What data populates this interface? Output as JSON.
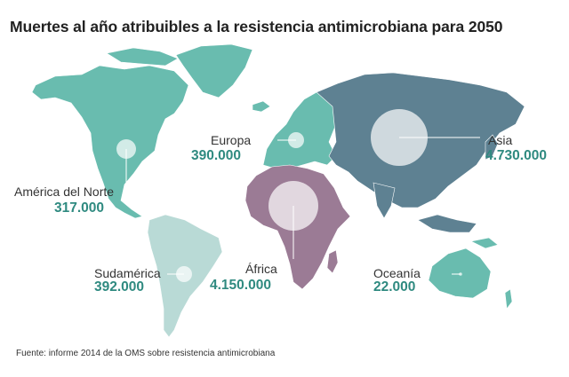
{
  "title": "Muertes al año atribuibles a la resistencia antimicrobiana para 2050",
  "source": "Fuente: informe 2014 de la OMS sobre resistencia antimicrobiana",
  "colors": {
    "teal": "#69bcaf",
    "teal_text": "#2f8a80",
    "asia": "#5e8192",
    "africa": "#9b7b95",
    "south_america": "#b9dad6",
    "bubble": "#ffffff"
  },
  "chart_data": {
    "type": "bubble-map",
    "title": "Muertes al año atribuibles a la resistencia antimicrobiana para 2050",
    "unit": "muertes al año",
    "regions": [
      {
        "name": "América del Norte",
        "label": "317.000",
        "value": 317000
      },
      {
        "name": "Europa",
        "label": "390.000",
        "value": 390000
      },
      {
        "name": "Asia",
        "label": "4.730.000",
        "value": 4730000
      },
      {
        "name": "África",
        "label": "4.150.000",
        "value": 4150000
      },
      {
        "name": "Sudamérica",
        "label": "392.000",
        "value": 392000
      },
      {
        "name": "Oceanía",
        "label": "22.000",
        "value": 22000
      }
    ]
  }
}
